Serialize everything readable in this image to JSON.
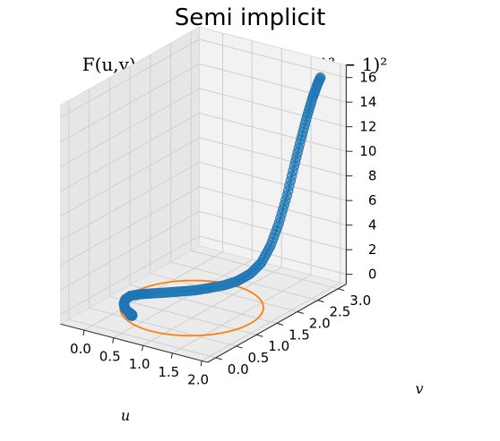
{
  "chart_data": {
    "type": "scatter",
    "title": "Semi implicit",
    "subtitle": "F(u,v) = ((u − 1)² + (v − 1)² − 1)²",
    "xlabel": "u",
    "ylabel": "v",
    "zlabel": "",
    "xlim": [
      -0.4,
      2.1
    ],
    "ylim": [
      -0.2,
      3.2
    ],
    "zlim": [
      -0.8,
      17
    ],
    "x_ticks": [
      "0.0",
      "0.5",
      "1.0",
      "1.5",
      "2.0"
    ],
    "y_ticks": [
      "0.0",
      "0.5",
      "1.0",
      "1.5",
      "2.0",
      "2.5",
      "3.0"
    ],
    "z_ticks": [
      "0",
      "2",
      "4",
      "6",
      "8",
      "10",
      "12",
      "14",
      "16"
    ],
    "grid": true,
    "colors": {
      "trajectory": "#1f77b4",
      "circle": "#ff7f0e"
    },
    "series": [
      {
        "kind": "trajectory-points",
        "points": [
          {
            "u": 1.8,
            "v": 3.0,
            "z": 16.0
          },
          {
            "u": 1.76,
            "v": 2.98,
            "z": 15.4
          },
          {
            "u": 1.7,
            "v": 2.95,
            "z": 14.3
          },
          {
            "u": 1.64,
            "v": 2.9,
            "z": 12.8
          },
          {
            "u": 1.58,
            "v": 2.84,
            "z": 11.0
          },
          {
            "u": 1.52,
            "v": 2.76,
            "z": 8.9
          },
          {
            "u": 1.46,
            "v": 2.67,
            "z": 6.6
          },
          {
            "u": 1.4,
            "v": 2.56,
            "z": 4.5
          },
          {
            "u": 1.34,
            "v": 2.44,
            "z": 2.8
          },
          {
            "u": 1.28,
            "v": 2.3,
            "z": 1.6
          },
          {
            "u": 1.2,
            "v": 2.15,
            "z": 0.9
          },
          {
            "u": 1.1,
            "v": 1.98,
            "z": 0.5
          },
          {
            "u": 0.98,
            "v": 1.82,
            "z": 0.3
          },
          {
            "u": 0.84,
            "v": 1.66,
            "z": 0.2
          },
          {
            "u": 0.7,
            "v": 1.52,
            "z": 0.1
          },
          {
            "u": 0.55,
            "v": 1.38,
            "z": 0.08
          },
          {
            "u": 0.4,
            "v": 1.25,
            "z": 0.05
          },
          {
            "u": 0.25,
            "v": 1.12,
            "z": 0.04
          },
          {
            "u": 0.12,
            "v": 1.0,
            "z": 0.03
          },
          {
            "u": 0.04,
            "v": 0.88,
            "z": 0.03
          },
          {
            "u": 0.05,
            "v": 0.74,
            "z": 0.02
          },
          {
            "u": 0.12,
            "v": 0.6,
            "z": 0.02
          },
          {
            "u": 0.22,
            "v": 0.48,
            "z": 0.02
          },
          {
            "u": 0.32,
            "v": 0.4,
            "z": 0.02
          },
          {
            "u": 0.4,
            "v": 0.34,
            "z": 0.02
          },
          {
            "u": 0.45,
            "v": 0.3,
            "z": 0.02
          },
          {
            "u": 0.47,
            "v": 0.3,
            "z": 0.02
          },
          {
            "u": 0.45,
            "v": 0.33,
            "z": 0.02
          },
          {
            "u": 0.4,
            "v": 0.36,
            "z": 0.02
          },
          {
            "u": 0.36,
            "v": 0.38,
            "z": 0.02
          }
        ]
      },
      {
        "kind": "unit-circle",
        "center": {
          "u": 1.0,
          "v": 1.0
        },
        "radius": 1.0,
        "z": 0
      }
    ]
  }
}
